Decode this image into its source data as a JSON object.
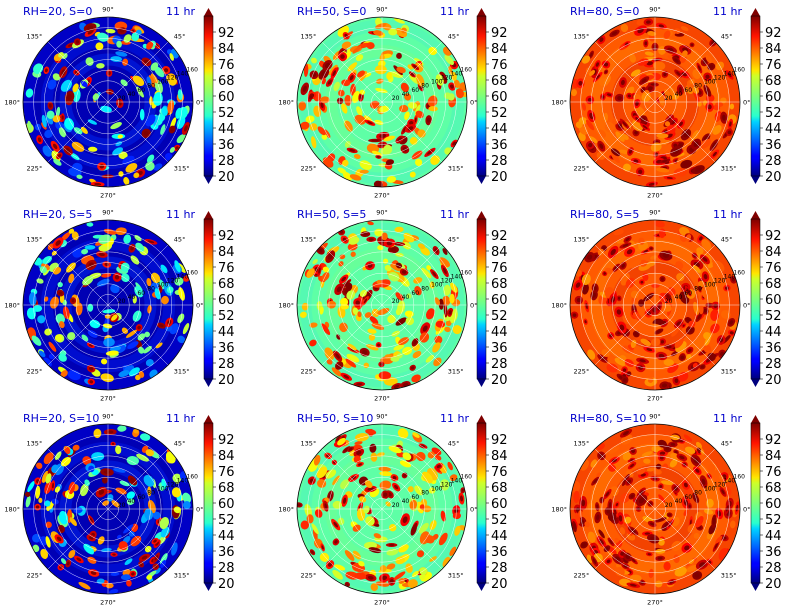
{
  "figure": {
    "time_label": "11 hr",
    "colorbar_ticks": [
      "92",
      "84",
      "76",
      "68",
      "60",
      "52",
      "44",
      "36",
      "28",
      "20"
    ],
    "angle_labels": [
      "90°",
      "45°",
      "0°",
      "315°",
      "270°",
      "225°",
      "180°",
      "135°"
    ],
    "radial_labels": [
      "20",
      "40",
      "60",
      "80",
      "100",
      "120",
      "140",
      "160"
    ],
    "colors": {
      "title": "#0000cc",
      "text": "#000000",
      "grid": "#ffffff"
    }
  },
  "chart_data": [
    {
      "type": "heatmap",
      "title": "RH=20, S=0",
      "regime": "low",
      "vmin": 20,
      "vmax": 100,
      "projection": "polar",
      "rmax": 160
    },
    {
      "type": "heatmap",
      "title": "RH=50, S=0",
      "regime": "mid",
      "vmin": 20,
      "vmax": 100,
      "projection": "polar",
      "rmax": 160
    },
    {
      "type": "heatmap",
      "title": "RH=80, S=0",
      "regime": "high",
      "vmin": 20,
      "vmax": 100,
      "projection": "polar",
      "rmax": 160
    },
    {
      "type": "heatmap",
      "title": "RH=20, S=5",
      "regime": "low",
      "vmin": 20,
      "vmax": 100,
      "projection": "polar",
      "rmax": 160
    },
    {
      "type": "heatmap",
      "title": "RH=50, S=5",
      "regime": "mid",
      "vmin": 20,
      "vmax": 100,
      "projection": "polar",
      "rmax": 160
    },
    {
      "type": "heatmap",
      "title": "RH=80, S=5",
      "regime": "high",
      "vmin": 20,
      "vmax": 100,
      "projection": "polar",
      "rmax": 160
    },
    {
      "type": "heatmap",
      "title": "RH=20, S=10",
      "regime": "low",
      "vmin": 20,
      "vmax": 100,
      "projection": "polar",
      "rmax": 160
    },
    {
      "type": "heatmap",
      "title": "RH=50, S=10",
      "regime": "mid",
      "vmin": 20,
      "vmax": 100,
      "projection": "polar",
      "rmax": 160
    },
    {
      "type": "heatmap",
      "title": "RH=80, S=10",
      "regime": "high",
      "vmin": 20,
      "vmax": 100,
      "projection": "polar",
      "rmax": 160
    }
  ]
}
